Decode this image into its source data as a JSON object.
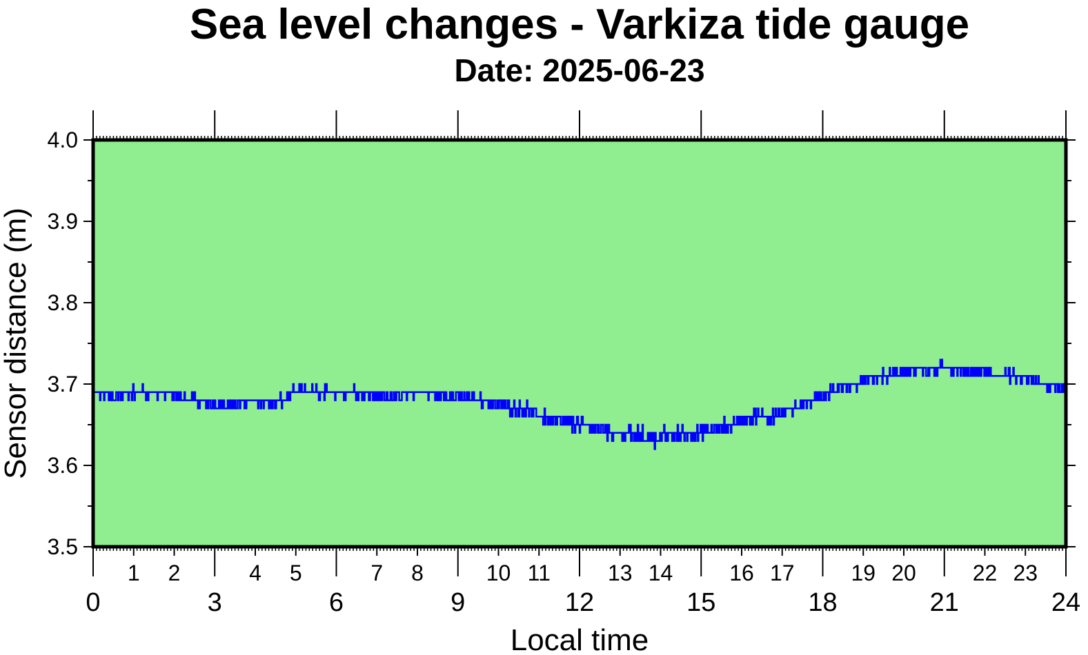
{
  "chart_data": {
    "type": "line",
    "title": "Sea level changes - Varkiza tide gauge",
    "subtitle": "Date: 2025-06-23",
    "xlabel": "Local time",
    "ylabel": "Sensor distance (m)",
    "xlim": [
      0,
      24
    ],
    "ylim": [
      3.5,
      4.0
    ],
    "x_major_ticks": [
      "0",
      "3",
      "6",
      "9",
      "12",
      "15",
      "18",
      "21",
      "24"
    ],
    "x_minor_ticks": [
      "1",
      "2",
      "4",
      "5",
      "7",
      "8",
      "10",
      "11",
      "13",
      "14",
      "16",
      "17",
      "19",
      "20",
      "22",
      "23"
    ],
    "y_ticks": [
      "3.5",
      "3.6",
      "3.7",
      "3.8",
      "3.9",
      "4.0"
    ],
    "plot_background": "#90ee90",
    "line_color": "#0000ff",
    "grid": false,
    "series": [
      {
        "x": [
          0,
          0.5,
          1,
          1.5,
          2,
          2.5,
          3,
          3.5,
          4,
          4.5,
          5,
          5.5,
          6,
          6.5,
          7,
          7.5,
          8,
          8.5,
          9,
          9.5,
          10,
          10.5,
          11,
          11.5,
          12,
          12.5,
          13,
          13.5,
          14,
          14.5,
          15,
          15.5,
          16,
          16.5,
          17,
          17.5,
          18,
          18.5,
          19,
          19.5,
          20,
          20.5,
          21,
          21.5,
          22,
          22.5,
          23,
          23.5,
          24
        ],
        "y": [
          3.69,
          3.685,
          3.69,
          3.69,
          3.685,
          3.68,
          3.675,
          3.675,
          3.68,
          3.675,
          3.69,
          3.69,
          3.69,
          3.69,
          3.685,
          3.685,
          3.69,
          3.685,
          3.685,
          3.68,
          3.675,
          3.67,
          3.66,
          3.655,
          3.65,
          3.645,
          3.64,
          3.635,
          3.635,
          3.64,
          3.64,
          3.645,
          3.655,
          3.66,
          3.665,
          3.675,
          3.685,
          3.695,
          3.705,
          3.71,
          3.715,
          3.715,
          3.72,
          3.715,
          3.715,
          3.71,
          3.705,
          3.7,
          3.695
        ]
      }
    ]
  }
}
